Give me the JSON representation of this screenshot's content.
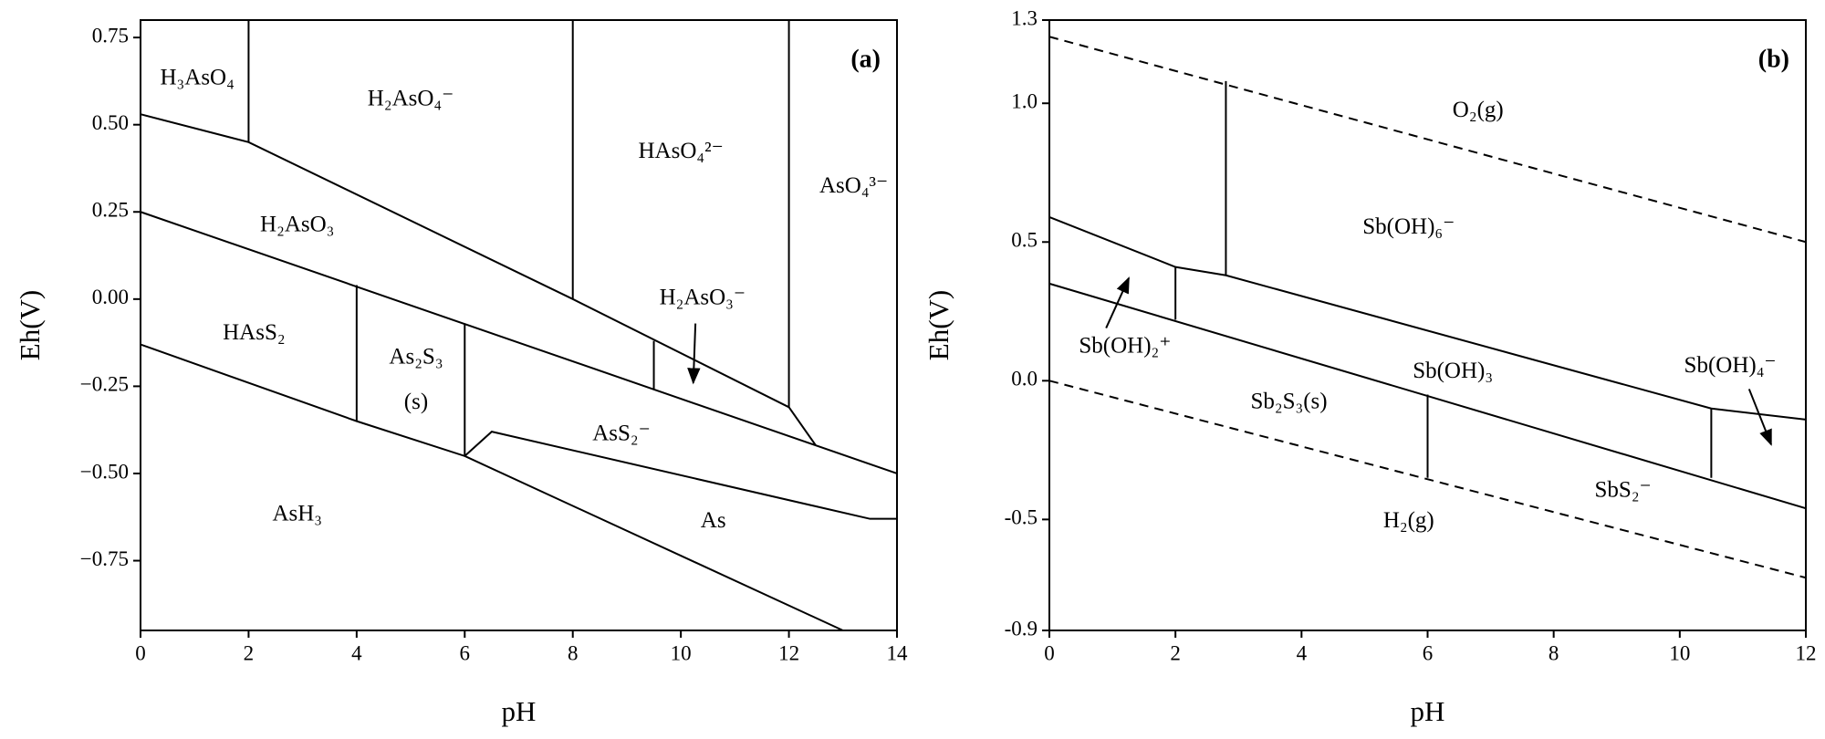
{
  "chart_data": [
    {
      "type": "line",
      "panel": "(a)",
      "xlabel": "pH",
      "ylabel": "Eh(V)",
      "xlim": [
        0,
        14
      ],
      "ylim": [
        -0.95,
        0.8
      ],
      "xticks": [
        0,
        2,
        4,
        6,
        8,
        10,
        12,
        14
      ],
      "yticks": [
        {
          "value": 0.75,
          "label": "0.75"
        },
        {
          "value": 0.5,
          "label": "0.50"
        },
        {
          "value": 0.25,
          "label": "0.25"
        },
        {
          "value": 0,
          "label": "0.00"
        },
        {
          "value": -0.25,
          "label": "−0.25"
        },
        {
          "value": -0.5,
          "label": "−0.50"
        },
        {
          "value": -0.75,
          "label": "−0.75"
        }
      ],
      "color": "#000000",
      "series": [
        {
          "x": [
            0,
            2,
            8,
            12,
            12.5
          ],
          "values": [
            0.53,
            0.45,
            0,
            -0.31,
            -0.42
          ],
          "style": "solid"
        },
        {
          "x": [
            2,
            2
          ],
          "values": [
            0.8,
            0.45
          ],
          "style": "solid"
        },
        {
          "x": [
            8,
            8
          ],
          "values": [
            0.8,
            0
          ],
          "style": "solid"
        },
        {
          "x": [
            12,
            12
          ],
          "values": [
            0.8,
            -0.31
          ],
          "style": "solid"
        },
        {
          "x": [
            0,
            14
          ],
          "values": [
            0.25,
            -0.5
          ],
          "style": "solid"
        },
        {
          "x": [
            9.5,
            9.5
          ],
          "values": [
            -0.12,
            -0.26
          ],
          "style": "solid"
        },
        {
          "x": [
            4,
            4
          ],
          "values": [
            0.04,
            -0.35
          ],
          "style": "solid"
        },
        {
          "x": [
            6,
            6
          ],
          "values": [
            -0.07,
            -0.45
          ],
          "style": "solid"
        },
        {
          "x": [
            0,
            4,
            6,
            13
          ],
          "values": [
            -0.13,
            -0.35,
            -0.45,
            -0.95
          ],
          "style": "solid"
        },
        {
          "x": [
            6,
            6.5,
            13.5,
            14
          ],
          "values": [
            -0.45,
            -0.38,
            -0.63,
            -0.63
          ],
          "style": "solid"
        }
      ],
      "annotations": [
        {
          "text": "H₃AsO₄",
          "x": 1.05,
          "y": 0.63
        },
        {
          "text": "H₂AsO₄⁻",
          "x": 5.0,
          "y": 0.57
        },
        {
          "text": "HAsO₄²⁻",
          "x": 10.0,
          "y": 0.42
        },
        {
          "text": "AsO₄³⁻",
          "x": 13.2,
          "y": 0.32
        },
        {
          "text": "H₂AsO₃",
          "x": 2.9,
          "y": 0.21
        },
        {
          "text": "HAsS₂",
          "x": 2.1,
          "y": -0.1
        },
        {
          "text": "As₂S₃",
          "x": 5.1,
          "y": -0.17
        },
        {
          "text": "(s)",
          "x": 5.1,
          "y": -0.3
        },
        {
          "text": "H₂AsO₃⁻",
          "x": 10.4,
          "y": 0.0
        },
        {
          "text": "AsS₂⁻",
          "x": 8.9,
          "y": -0.39
        },
        {
          "text": "As",
          "x": 10.6,
          "y": -0.64
        },
        {
          "text": "AsH₃",
          "x": 2.9,
          "y": -0.62
        }
      ],
      "arrows": [
        {
          "x": [
            10.27,
            10.23
          ],
          "y": [
            -0.07,
            -0.24
          ]
        }
      ]
    },
    {
      "type": "line",
      "panel": "(b)",
      "xlabel": "pH",
      "ylabel": "Eh(V)",
      "xlim": [
        0,
        12
      ],
      "ylim": [
        -0.9,
        1.3
      ],
      "xticks": [
        0,
        2,
        4,
        6,
        8,
        10,
        12
      ],
      "yticks": [
        1.3,
        {
          "value": 1,
          "label": "1.0"
        },
        0.5,
        {
          "value": 0,
          "label": "0.0"
        },
        -0.5,
        -0.9
      ],
      "color": "#000000",
      "series": [
        {
          "x": [
            0,
            12
          ],
          "values": [
            1.24,
            0.5
          ],
          "style": "dashed"
        },
        {
          "x": [
            0,
            12
          ],
          "values": [
            0,
            -0.71
          ],
          "style": "dashed"
        },
        {
          "x": [
            0,
            2,
            2.8,
            10.5,
            12
          ],
          "values": [
            0.59,
            0.41,
            0.38,
            -0.1,
            -0.14
          ],
          "style": "solid"
        },
        {
          "x": [
            2.8,
            2.8
          ],
          "values": [
            1.08,
            0.38
          ],
          "style": "solid"
        },
        {
          "x": [
            2,
            2
          ],
          "values": [
            0.41,
            0.22
          ],
          "style": "solid"
        },
        {
          "x": [
            0,
            12
          ],
          "values": [
            0.35,
            -0.46
          ],
          "style": "solid"
        },
        {
          "x": [
            6,
            6
          ],
          "values": [
            -0.05,
            -0.35
          ],
          "style": "solid"
        },
        {
          "x": [
            10.5,
            10.5
          ],
          "values": [
            -0.1,
            -0.35
          ],
          "style": "solid"
        }
      ],
      "annotations": [
        {
          "text": "O₂(g)",
          "x": 6.8,
          "y": 0.97
        },
        {
          "text": "Sb(OH)₆⁻",
          "x": 5.7,
          "y": 0.55
        },
        {
          "text": "Sb(OH)₂⁺",
          "x": 1.2,
          "y": 0.12
        },
        {
          "text": "Sb(OH)₃",
          "x": 6.4,
          "y": 0.03
        },
        {
          "text": "Sb₂S₃(s)",
          "x": 3.8,
          "y": -0.08
        },
        {
          "text": "Sb(OH)₄⁻",
          "x": 10.8,
          "y": 0.05
        },
        {
          "text": "SbS₂⁻",
          "x": 9.1,
          "y": -0.4
        },
        {
          "text": "H₂(g)",
          "x": 5.7,
          "y": -0.51
        }
      ],
      "arrows": [
        {
          "x": [
            0.9,
            1.26
          ],
          "y": [
            0.19,
            0.37
          ]
        },
        {
          "x": [
            11.1,
            11.45
          ],
          "y": [
            -0.03,
            -0.23
          ]
        }
      ]
    }
  ]
}
